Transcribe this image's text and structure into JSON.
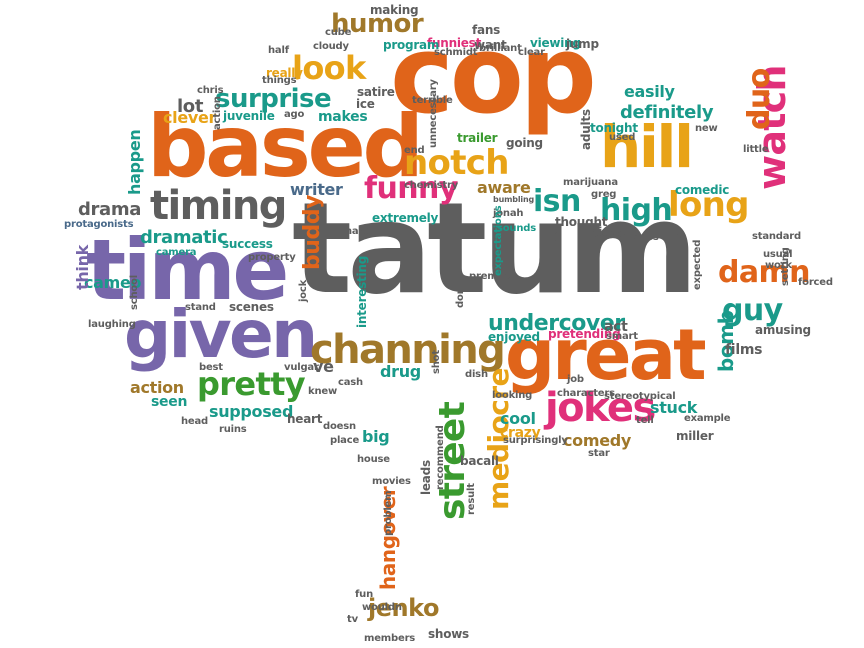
{
  "colors": {
    "orange": "#E0641A",
    "gray": "#5E5E5E",
    "purple": "#7766AA",
    "green": "#3A9A2F",
    "gold": "#E8A317",
    "teal": "#1A9A8A",
    "brown": "#A0782A",
    "magenta": "#E0307A",
    "slate": "#4A6A8A"
  },
  "words": [
    {
      "text": "tatum",
      "color": "gray"
    },
    {
      "text": "cop",
      "color": "orange"
    },
    {
      "text": "based",
      "color": "orange"
    },
    {
      "text": "time",
      "color": "purple"
    },
    {
      "text": "given",
      "color": "purple"
    },
    {
      "text": "great",
      "color": "orange"
    },
    {
      "text": "hill",
      "color": "gold"
    },
    {
      "text": "channing",
      "color": "brown"
    },
    {
      "text": "street",
      "color": "green"
    },
    {
      "text": "jokes",
      "color": "magenta"
    },
    {
      "text": "timing",
      "color": "gray"
    },
    {
      "text": "notch",
      "color": "gold"
    },
    {
      "text": "look",
      "color": "gold"
    },
    {
      "text": "humor",
      "color": "brown"
    },
    {
      "text": "surprise",
      "color": "teal"
    },
    {
      "text": "pretty",
      "color": "green"
    },
    {
      "text": "funny",
      "color": "magenta"
    },
    {
      "text": "high",
      "color": "teal"
    },
    {
      "text": "long",
      "color": "gold"
    },
    {
      "text": "watch",
      "color": "magenta"
    },
    {
      "text": "duo",
      "color": "orange"
    },
    {
      "text": "damn",
      "color": "orange"
    },
    {
      "text": "guy",
      "color": "teal"
    },
    {
      "text": "mediocre",
      "color": "gold"
    },
    {
      "text": "jenko",
      "color": "brown"
    },
    {
      "text": "isn",
      "color": "teal"
    },
    {
      "text": "undercover",
      "color": "teal"
    },
    {
      "text": "drama",
      "color": "gray"
    },
    {
      "text": "dramatic",
      "color": "teal"
    },
    {
      "text": "buddy",
      "color": "orange"
    },
    {
      "text": "action",
      "color": "brown"
    },
    {
      "text": "comedy",
      "color": "brown"
    },
    {
      "text": "hangover",
      "color": "orange"
    },
    {
      "text": "bomb",
      "color": "teal"
    },
    {
      "text": "definitely",
      "color": "teal"
    },
    {
      "text": "easily",
      "color": "teal"
    },
    {
      "text": "lot",
      "color": "gray"
    },
    {
      "text": "clever",
      "color": "gold"
    },
    {
      "text": "makes",
      "color": "teal"
    },
    {
      "text": "writer",
      "color": "slate"
    },
    {
      "text": "aware",
      "color": "brown"
    },
    {
      "text": "extremely",
      "color": "teal"
    },
    {
      "text": "drug",
      "color": "teal"
    },
    {
      "text": "ve",
      "color": "gray"
    },
    {
      "text": "stuck",
      "color": "teal"
    },
    {
      "text": "supposed",
      "color": "teal"
    },
    {
      "text": "big",
      "color": "teal"
    },
    {
      "text": "cool",
      "color": "teal"
    },
    {
      "text": "crazy",
      "color": "gold"
    },
    {
      "text": "cameo",
      "color": "teal"
    },
    {
      "text": "think",
      "color": "purple"
    },
    {
      "text": "happen",
      "color": "teal"
    },
    {
      "text": "films",
      "color": "gray"
    },
    {
      "text": "act",
      "color": "gray"
    },
    {
      "text": "bacall",
      "color": "gray"
    },
    {
      "text": "shows",
      "color": "gray"
    },
    {
      "text": "amusing",
      "color": "gray"
    },
    {
      "text": "miller",
      "color": "gray"
    },
    {
      "text": "seen",
      "color": "teal"
    },
    {
      "text": "scenes",
      "color": "gray"
    },
    {
      "text": "success",
      "color": "teal"
    },
    {
      "text": "enjoyed",
      "color": "teal"
    },
    {
      "text": "pretending",
      "color": "magenta"
    },
    {
      "text": "trailer",
      "color": "green"
    },
    {
      "text": "chemistry",
      "color": "gray"
    },
    {
      "text": "leads",
      "color": "gray"
    },
    {
      "text": "members",
      "color": "gray"
    },
    {
      "text": "interesting",
      "color": "teal"
    },
    {
      "text": "tonight",
      "color": "teal"
    },
    {
      "text": "protagonists",
      "color": "slate"
    },
    {
      "text": "fans",
      "color": "gray"
    },
    {
      "text": "funniest",
      "color": "magenta"
    },
    {
      "text": "want",
      "color": "gray"
    },
    {
      "text": "making",
      "color": "gray"
    },
    {
      "text": "cube",
      "color": "gray"
    },
    {
      "text": "program",
      "color": "teal"
    },
    {
      "text": "cloudy",
      "color": "gray"
    },
    {
      "text": "half",
      "color": "gray"
    },
    {
      "text": "really",
      "color": "gold"
    },
    {
      "text": "things",
      "color": "gray"
    },
    {
      "text": "juvenile",
      "color": "teal"
    },
    {
      "text": "ago",
      "color": "gray"
    },
    {
      "text": "satire",
      "color": "gray"
    },
    {
      "text": "ice",
      "color": "gray"
    },
    {
      "text": "terrible",
      "color": "gray"
    },
    {
      "text": "brilliant",
      "color": "gray"
    },
    {
      "text": "viewing",
      "color": "teal"
    },
    {
      "text": "jump",
      "color": "gray"
    },
    {
      "text": "clear",
      "color": "gray"
    },
    {
      "text": "schmidt",
      "color": "gray"
    },
    {
      "text": "chris",
      "color": "gray"
    },
    {
      "text": "action",
      "color": "gray"
    },
    {
      "text": "unnecessary",
      "color": "gray"
    },
    {
      "text": "end",
      "color": "gray"
    },
    {
      "text": "going",
      "color": "gray"
    },
    {
      "text": "adults",
      "color": "gray"
    },
    {
      "text": "used",
      "color": "gray"
    },
    {
      "text": "new",
      "color": "gray"
    },
    {
      "text": "little",
      "color": "gray"
    },
    {
      "text": "comedic",
      "color": "teal"
    },
    {
      "text": "marijuana",
      "color": "gray"
    },
    {
      "text": "greg",
      "color": "gray"
    },
    {
      "text": "bumbling",
      "color": "gray"
    },
    {
      "text": "jonah",
      "color": "gray"
    },
    {
      "text": "sounds",
      "color": "teal"
    },
    {
      "text": "thought",
      "color": "gray"
    },
    {
      "text": "night",
      "color": "gray"
    },
    {
      "text": "series",
      "color": "gray"
    },
    {
      "text": "low",
      "color": "gray"
    },
    {
      "text": "standard",
      "color": "gray"
    },
    {
      "text": "usual",
      "color": "gray"
    },
    {
      "text": "work",
      "color": "gray"
    },
    {
      "text": "forced",
      "color": "gray"
    },
    {
      "text": "setting",
      "color": "gray"
    },
    {
      "text": "expected",
      "color": "gray"
    },
    {
      "text": "bad",
      "color": "gray"
    },
    {
      "text": "concept",
      "color": "gray"
    },
    {
      "text": "hard",
      "color": "gray"
    },
    {
      "text": "premise",
      "color": "gray"
    },
    {
      "text": "expectations",
      "color": "teal"
    },
    {
      "text": "don",
      "color": "gray"
    },
    {
      "text": "smart",
      "color": "gray"
    },
    {
      "text": "dish",
      "color": "gray"
    },
    {
      "text": "job",
      "color": "gray"
    },
    {
      "text": "characters",
      "color": "gray"
    },
    {
      "text": "stereotypical",
      "color": "gray"
    },
    {
      "text": "tell",
      "color": "gray"
    },
    {
      "text": "example",
      "color": "gray"
    },
    {
      "text": "star",
      "color": "gray"
    },
    {
      "text": "looking",
      "color": "gray"
    },
    {
      "text": "surprisingly",
      "color": "gray"
    },
    {
      "text": "shot",
      "color": "gray"
    },
    {
      "text": "recommend",
      "color": "gray"
    },
    {
      "text": "result",
      "color": "gray"
    },
    {
      "text": "problem",
      "color": "gray"
    },
    {
      "text": "fun",
      "color": "gray"
    },
    {
      "text": "wouldn",
      "color": "gray"
    },
    {
      "text": "tv",
      "color": "gray"
    },
    {
      "text": "movies",
      "color": "gray"
    },
    {
      "text": "house",
      "color": "gray"
    },
    {
      "text": "place",
      "color": "gray"
    },
    {
      "text": "doesn",
      "color": "gray"
    },
    {
      "text": "cash",
      "color": "gray"
    },
    {
      "text": "knew",
      "color": "gray"
    },
    {
      "text": "vulgar",
      "color": "gray"
    },
    {
      "text": "heart",
      "color": "gray"
    },
    {
      "text": "ruins",
      "color": "gray"
    },
    {
      "text": "head",
      "color": "gray"
    },
    {
      "text": "best",
      "color": "gray"
    },
    {
      "text": "stand",
      "color": "gray"
    },
    {
      "text": "laughing",
      "color": "gray"
    },
    {
      "text": "school",
      "color": "gray"
    },
    {
      "text": "camera",
      "color": "teal"
    },
    {
      "text": "property",
      "color": "gray"
    },
    {
      "text": "jock",
      "color": "gray"
    }
  ]
}
